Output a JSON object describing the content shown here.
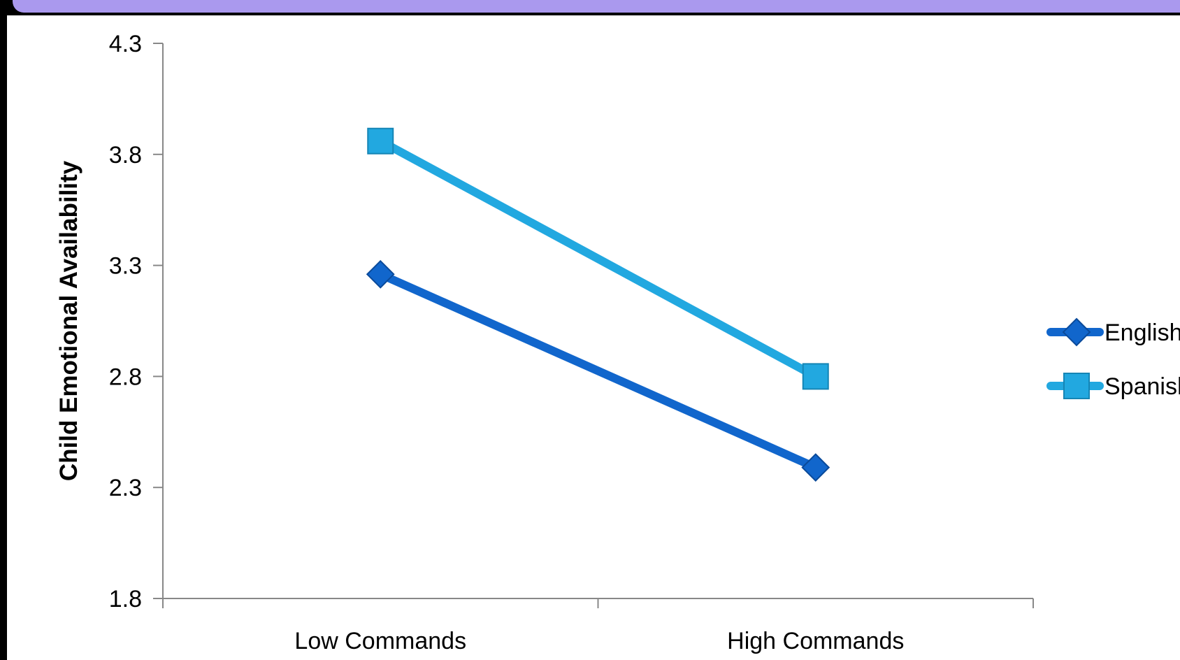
{
  "chart_data": {
    "type": "line",
    "title": "",
    "xlabel": "",
    "ylabel": "Child Emotional Availability",
    "categories": [
      "Low Commands",
      "High Commands"
    ],
    "ylim": [
      1.8,
      4.3
    ],
    "yticks": [
      "1.8",
      "2.3",
      "2.8",
      "3.3",
      "3.8",
      "4.3"
    ],
    "grid": false,
    "legend_position": "right",
    "series": [
      {
        "name": "English",
        "values": [
          3.26,
          2.39
        ],
        "color": "#1166cc",
        "marker": "diamond"
      },
      {
        "name": "Spanish",
        "values": [
          3.86,
          2.8
        ],
        "color": "#22a8e0",
        "marker": "square"
      }
    ]
  },
  "colors": {
    "banner": "#aa99ee",
    "background": "#000000",
    "panel": "#ffffff"
  }
}
